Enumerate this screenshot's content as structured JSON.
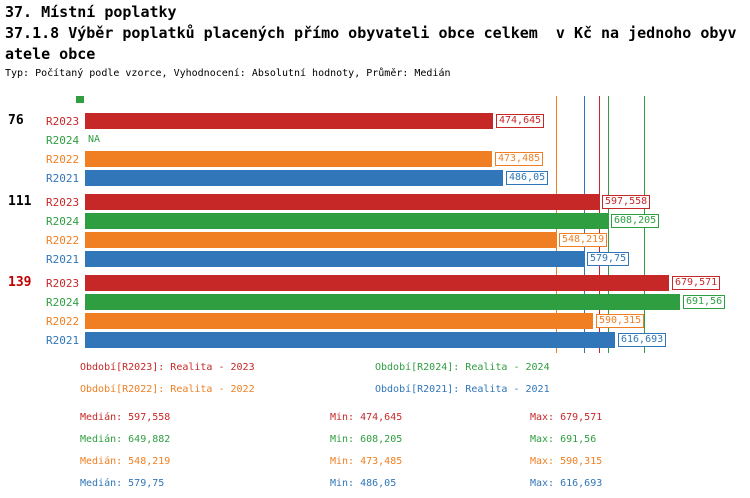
{
  "header": {
    "title": "37. Místní poplatky",
    "subtitle_line1": "37.1.8 Výběr poplatků placených přímo obyvateli obce celkem  v Kč na jednoho obyv",
    "subtitle_line2": "atele obce",
    "meta": "Typ: Počítaný podle vzorce, Vyhodnocení: Absolutní hodnoty, Průměr: Medián"
  },
  "colors": {
    "r2023": "#c62828",
    "r2024": "#2f9e41",
    "r2022": "#ef7f22",
    "r2021": "#3076b8",
    "group_label": "#000000",
    "group_label_highlight": "#c00000"
  },
  "chart_data": {
    "type": "bar",
    "orientation": "horizontal",
    "title": "37. Místní poplatky",
    "subtitle": "37.1.8 Výběr poplatků placených přímo obyvateli obce celkem v Kč na jednoho obyvatele obce",
    "settings": "Typ: Počítaný podle vzorce, Vyhodnocení: Absolutní hodnoty, Průměr: Medián",
    "series_order": [
      "R2023",
      "R2024",
      "R2022",
      "R2021"
    ],
    "groups": [
      {
        "label": "76",
        "highlight": false,
        "bars": [
          {
            "series": "R2023",
            "value": 474.645,
            "display": "474,645"
          },
          {
            "series": "R2024",
            "value": null,
            "display": "NA"
          },
          {
            "series": "R2022",
            "value": 473.485,
            "display": "473,485"
          },
          {
            "series": "R2021",
            "value": 486.05,
            "display": "486,05"
          }
        ]
      },
      {
        "label": "111",
        "highlight": false,
        "bars": [
          {
            "series": "R2023",
            "value": 597.558,
            "display": "597,558"
          },
          {
            "series": "R2024",
            "value": 608.205,
            "display": "608,205"
          },
          {
            "series": "R2022",
            "value": 548.219,
            "display": "548,219"
          },
          {
            "series": "R2021",
            "value": 579.75,
            "display": "579,75"
          }
        ]
      },
      {
        "label": "139",
        "highlight": true,
        "bars": [
          {
            "series": "R2023",
            "value": 679.571,
            "display": "679,571"
          },
          {
            "series": "R2024",
            "value": 691.56,
            "display": "691,56"
          },
          {
            "series": "R2022",
            "value": 590.315,
            "display": "590,315"
          },
          {
            "series": "R2021",
            "value": 616.693,
            "display": "616,693"
          }
        ]
      }
    ],
    "reference_lines": [
      {
        "series": "R2022",
        "value": 548.219,
        "stat": "median"
      },
      {
        "series": "R2021",
        "value": 579.75,
        "stat": "median"
      },
      {
        "series": "R2023",
        "value": 597.558,
        "stat": "median"
      },
      {
        "series": "R2024",
        "value": 608.205,
        "stat": "min"
      },
      {
        "series": "R2024",
        "value": 649.882,
        "stat": "median"
      }
    ],
    "legend": [
      {
        "series": "R2023",
        "label": "Období[R2023]: Realita - 2023"
      },
      {
        "series": "R2024",
        "label": "Období[R2024]: Realita - 2024"
      },
      {
        "series": "R2022",
        "label": "Období[R2022]: Realita - 2022"
      },
      {
        "series": "R2021",
        "label": "Období[R2021]: Realita - 2021"
      }
    ],
    "stats_labels": {
      "median": "Medián",
      "min": "Min",
      "max": "Max"
    },
    "stats": [
      {
        "series": "R2023",
        "median": "597,558",
        "min": "474,645",
        "max": "679,571",
        "median_value": 597.558,
        "min_value": 474.645,
        "max_value": 679.571
      },
      {
        "series": "R2024",
        "median": "649,882",
        "min": "608,205",
        "max": "691,56",
        "median_value": 649.882,
        "min_value": 608.205,
        "max_value": 691.56
      },
      {
        "series": "R2022",
        "median": "548,219",
        "min": "473,485",
        "max": "590,315",
        "median_value": 548.219,
        "min_value": 473.485,
        "max_value": 590.315
      },
      {
        "series": "R2021",
        "median": "579,75",
        "min": "486,05",
        "max": "616,693",
        "median_value": 579.75,
        "min_value": 486.05,
        "max_value": 616.693
      }
    ]
  }
}
